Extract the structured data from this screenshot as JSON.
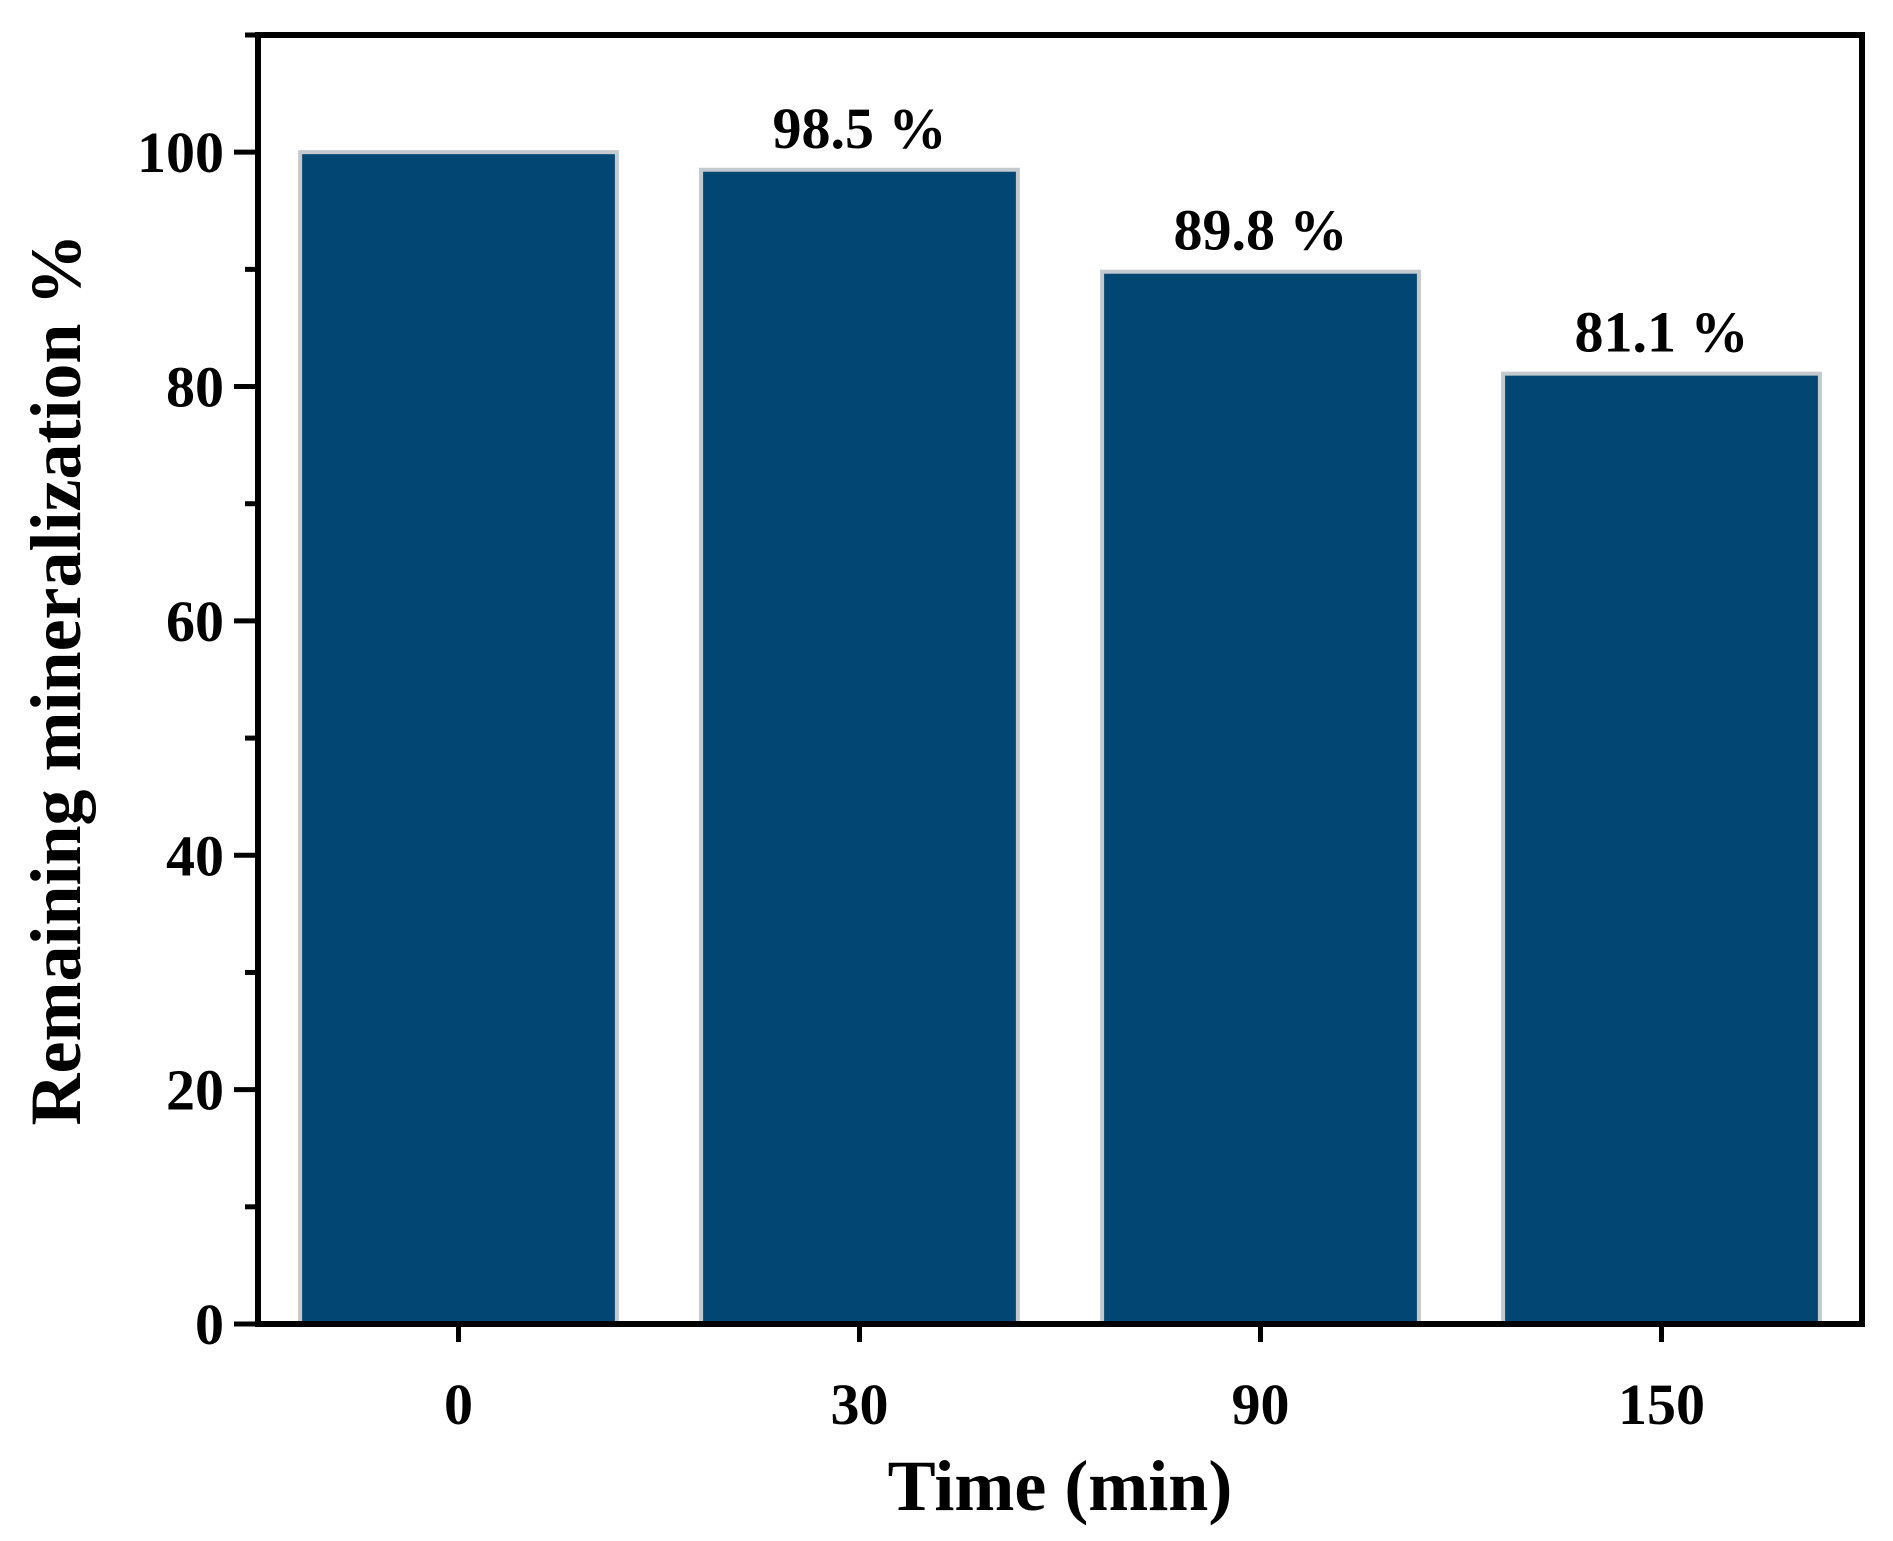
{
  "chart_data": {
    "type": "bar",
    "xlabel": "Time (min)",
    "ylabel": "Remaining mineralization %",
    "categories": [
      "0",
      "30",
      "90",
      "150"
    ],
    "values": [
      100,
      98.5,
      89.8,
      81.1
    ],
    "data_labels": [
      "",
      "98.5 %",
      "89.8 %",
      "81.1 %"
    ],
    "ylim": [
      0,
      110
    ],
    "yticks": [
      0,
      20,
      40,
      60,
      80,
      100
    ],
    "minor_tick_step": 10,
    "grid": false,
    "legend": "none",
    "colors": {
      "bar_fill": "#024773",
      "bar_edge": "#c4c9cd",
      "axis": "#000000"
    }
  }
}
